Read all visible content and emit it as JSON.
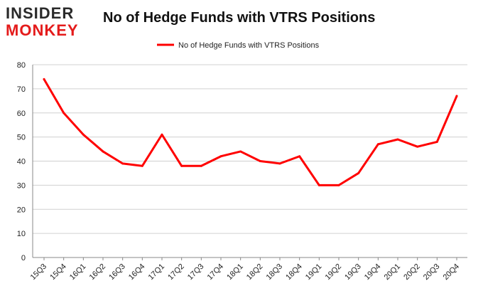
{
  "brand": {
    "line1": "INSIDER",
    "line2": "MONKEY"
  },
  "chart_data": {
    "type": "line",
    "title": "No of Hedge Funds with VTRS Positions",
    "xlabel": "",
    "ylabel": "",
    "ylim": [
      0,
      80
    ],
    "yticks": [
      0,
      10,
      20,
      30,
      40,
      50,
      60,
      70,
      80
    ],
    "grid": true,
    "legend_placement": "top-center",
    "categories": [
      "15Q3",
      "15Q4",
      "16Q1",
      "16Q2",
      "16Q3",
      "16Q4",
      "17Q1",
      "17Q2",
      "17Q3",
      "17Q4",
      "18Q1",
      "18Q2",
      "18Q3",
      "18Q4",
      "19Q1",
      "19Q2",
      "19Q3",
      "19Q4",
      "20Q1",
      "20Q2",
      "20Q3",
      "20Q4"
    ],
    "series": [
      {
        "name": "No of Hedge Funds with VTRS  Positions",
        "color": "#ff0000",
        "values": [
          74,
          60,
          51,
          44,
          39,
          38,
          51,
          38,
          38,
          42,
          44,
          40,
          39,
          42,
          30,
          30,
          35,
          47,
          49,
          46,
          48,
          67
        ]
      }
    ]
  }
}
